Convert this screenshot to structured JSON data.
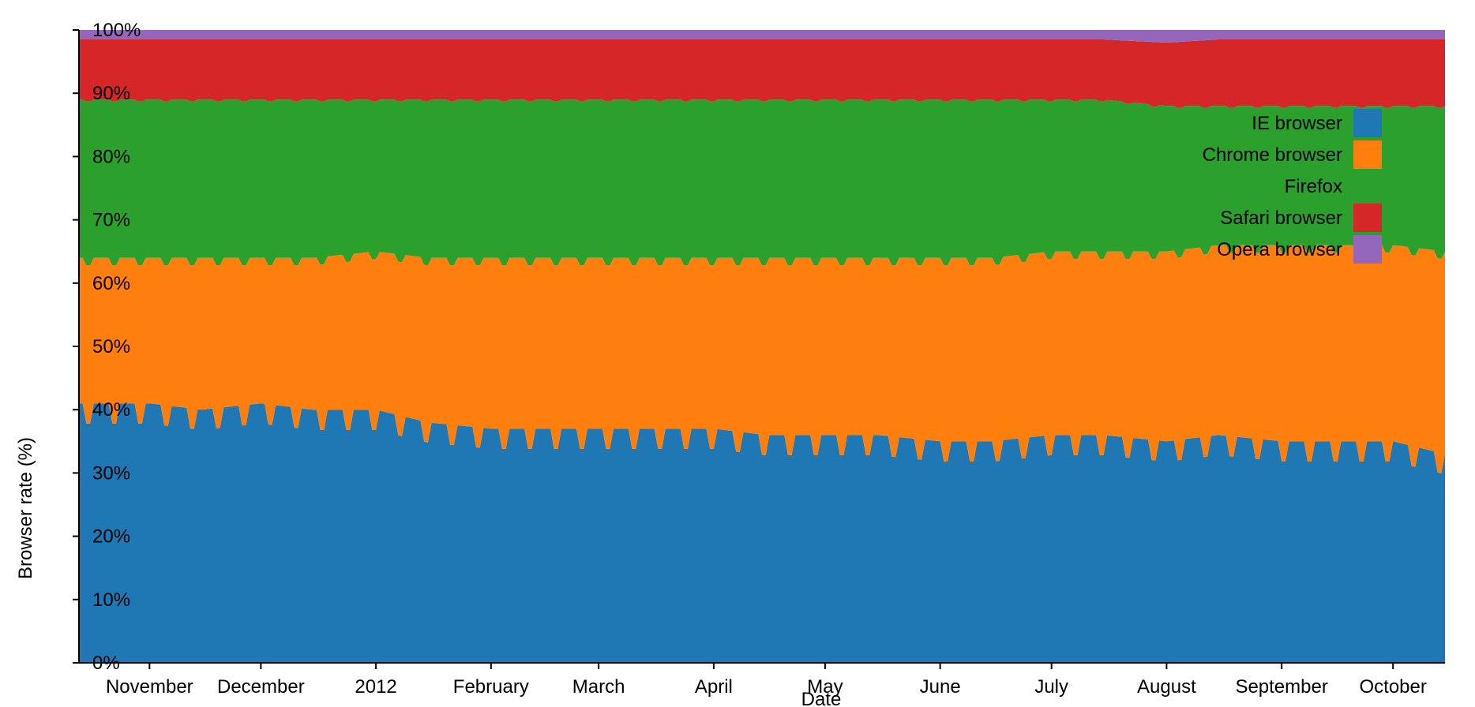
{
  "chart_data": {
    "type": "area",
    "stacked": true,
    "normalized": true,
    "xlabel": "Date",
    "ylabel": "Browser rate (%)",
    "ylim": [
      0,
      100
    ],
    "y_ticks": [
      "0%",
      "10%",
      "20%",
      "30%",
      "40%",
      "50%",
      "60%",
      "70%",
      "80%",
      "90%",
      "100%"
    ],
    "x_ticks": [
      "November",
      "December",
      "2012",
      "February",
      "March",
      "April",
      "May",
      "June",
      "July",
      "August",
      "September",
      "October"
    ],
    "x_range": [
      "2011-10-13",
      "2012-10-15"
    ],
    "legend_position": "top-right",
    "series": [
      {
        "name": "IE browser",
        "color": "#1f77b4",
        "x": [
          "2011-10-15",
          "2011-11-01",
          "2011-11-15",
          "2011-12-01",
          "2011-12-15",
          "2012-01-01",
          "2012-01-15",
          "2012-02-01",
          "2012-02-15",
          "2012-03-01",
          "2012-03-15",
          "2012-04-01",
          "2012-04-15",
          "2012-05-01",
          "2012-05-15",
          "2012-06-01",
          "2012-06-15",
          "2012-07-01",
          "2012-07-15",
          "2012-08-01",
          "2012-08-15",
          "2012-09-01",
          "2012-09-15",
          "2012-10-01",
          "2012-10-15"
        ],
        "values": [
          41,
          41,
          40,
          41,
          40,
          40,
          38,
          37,
          37,
          37,
          37,
          37,
          36,
          36,
          36,
          35,
          35,
          36,
          36,
          35,
          36,
          35,
          35,
          35,
          33
        ]
      },
      {
        "name": "Chrome browser",
        "color": "#ff7f0e",
        "x": [
          "2011-10-15",
          "2011-11-01",
          "2011-11-15",
          "2011-12-01",
          "2011-12-15",
          "2012-01-01",
          "2012-01-15",
          "2012-02-01",
          "2012-02-15",
          "2012-03-01",
          "2012-03-15",
          "2012-04-01",
          "2012-04-15",
          "2012-05-01",
          "2012-05-15",
          "2012-06-01",
          "2012-06-15",
          "2012-07-01",
          "2012-07-15",
          "2012-08-01",
          "2012-08-15",
          "2012-09-01",
          "2012-09-15",
          "2012-10-01",
          "2012-10-15"
        ],
        "values": [
          23,
          23,
          24,
          23,
          24,
          25,
          26,
          27,
          27,
          27,
          27,
          27,
          28,
          28,
          28,
          29,
          29,
          29,
          29,
          30,
          30,
          31,
          31,
          31,
          32
        ]
      },
      {
        "name": "Firefox",
        "color": "#2ca02c",
        "x": [
          "2011-10-15",
          "2011-11-01",
          "2011-11-15",
          "2011-12-01",
          "2011-12-15",
          "2012-01-01",
          "2012-01-15",
          "2012-02-01",
          "2012-02-15",
          "2012-03-01",
          "2012-03-15",
          "2012-04-01",
          "2012-04-15",
          "2012-05-01",
          "2012-05-15",
          "2012-06-01",
          "2012-06-15",
          "2012-07-01",
          "2012-07-15",
          "2012-08-01",
          "2012-08-15",
          "2012-09-01",
          "2012-09-15",
          "2012-10-01",
          "2012-10-15"
        ],
        "values": [
          25,
          25,
          25,
          25,
          25,
          24,
          25,
          25,
          25,
          25,
          25,
          25,
          25,
          25,
          25,
          25,
          25,
          24,
          24,
          23,
          22,
          22,
          22,
          22,
          23
        ]
      },
      {
        "name": "Safari browser",
        "color": "#d62728",
        "x": [
          "2011-10-15",
          "2011-11-01",
          "2011-11-15",
          "2011-12-01",
          "2011-12-15",
          "2012-01-01",
          "2012-01-15",
          "2012-02-01",
          "2012-02-15",
          "2012-03-01",
          "2012-03-15",
          "2012-04-01",
          "2012-04-15",
          "2012-05-01",
          "2012-05-15",
          "2012-06-01",
          "2012-06-15",
          "2012-07-01",
          "2012-07-15",
          "2012-08-01",
          "2012-08-15",
          "2012-09-01",
          "2012-09-15",
          "2012-10-01",
          "2012-10-15"
        ],
        "values": [
          9.5,
          9.5,
          9.5,
          9.5,
          9.5,
          9.5,
          9.5,
          9.5,
          9.5,
          9.5,
          9.5,
          9.5,
          9.5,
          9.5,
          9.5,
          9.5,
          9.5,
          9.5,
          9.5,
          10,
          10.5,
          10.5,
          10.5,
          10.5,
          10.5
        ]
      },
      {
        "name": "Opera browser",
        "color": "#9467bd",
        "x": [
          "2011-10-15",
          "2011-11-01",
          "2011-11-15",
          "2011-12-01",
          "2011-12-15",
          "2012-01-01",
          "2012-01-15",
          "2012-02-01",
          "2012-02-15",
          "2012-03-01",
          "2012-03-15",
          "2012-04-01",
          "2012-04-15",
          "2012-05-01",
          "2012-05-15",
          "2012-06-01",
          "2012-06-15",
          "2012-07-01",
          "2012-07-15",
          "2012-08-01",
          "2012-08-15",
          "2012-09-01",
          "2012-09-15",
          "2012-10-01",
          "2012-10-15"
        ],
        "values": [
          1.5,
          1.5,
          1.5,
          1.5,
          1.5,
          1.5,
          1.5,
          1.5,
          1.5,
          1.5,
          1.5,
          1.5,
          1.5,
          1.5,
          1.5,
          1.5,
          1.5,
          1.5,
          1.5,
          1.5,
          1.5,
          1.5,
          1.5,
          1.5,
          1.5
        ]
      }
    ],
    "legend": [
      {
        "label": "IE browser",
        "color": "#1f77b4",
        "swatch": true
      },
      {
        "label": "Chrome browser",
        "color": "#ff7f0e",
        "swatch": true
      },
      {
        "label": "Firefox",
        "color": "#2ca02c",
        "swatch": false
      },
      {
        "label": "Safari browser",
        "color": "#d62728",
        "swatch": true
      },
      {
        "label": "Opera browser",
        "color": "#9467bd",
        "swatch": true
      }
    ]
  }
}
